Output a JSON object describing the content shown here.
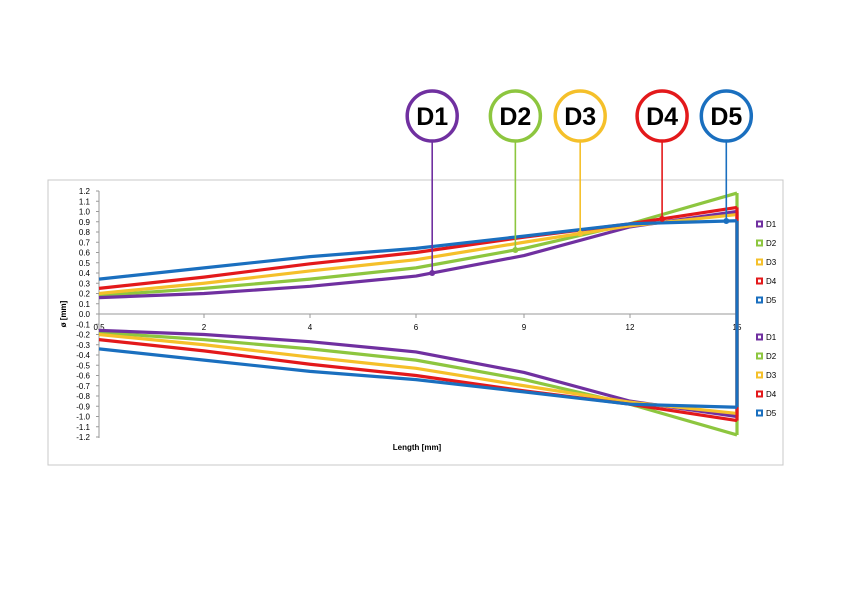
{
  "chart_data": {
    "type": "line",
    "title": "",
    "xlabel": "Length [mm]",
    "ylabel": "ø [mm]",
    "ylim": [
      -1.2,
      1.2
    ],
    "y_ticks": [
      1.2,
      1.1,
      1.0,
      0.9,
      0.8,
      0.7,
      0.6,
      0.5,
      0.4,
      0.3,
      0.2,
      0.1,
      0.0,
      -0.1,
      -0.2,
      -0.3,
      -0.4,
      -0.5,
      -0.6,
      -0.7,
      -0.8,
      -0.9,
      -1.0,
      -1.1,
      -1.2
    ],
    "y_tick_labels": [
      "1.2",
      "1.1",
      "1.0",
      "0.9",
      "0.8",
      "0.7",
      "0.6",
      "0.5",
      "0.4",
      "0.3",
      "0.2",
      "0.1",
      "0.0",
      "-0.1",
      "-0.2",
      "-0.3",
      "-0.4",
      "-0.5",
      "-0.6",
      "-0.7",
      "-0.8",
      "-0.9",
      "-1.0",
      "-1.1",
      "-1.2"
    ],
    "x_categories": [
      "0.5",
      "2",
      "4",
      "6",
      "9",
      "12",
      "15"
    ],
    "grid": false,
    "legend_position": "right",
    "colors": {
      "D1": "#7030a0",
      "D2": "#8dc63f",
      "D3": "#f5c02a",
      "D4": "#e3191b",
      "D5": "#1a6fbf"
    },
    "series": [
      {
        "name": "D1",
        "values": [
          0.16,
          0.2,
          0.27,
          0.37,
          0.57,
          0.85,
          1.0
        ]
      },
      {
        "name": "D2",
        "values": [
          0.18,
          0.25,
          0.34,
          0.45,
          0.64,
          0.88,
          1.18
        ]
      },
      {
        "name": "D3",
        "values": [
          0.2,
          0.3,
          0.42,
          0.53,
          0.7,
          0.86,
          0.97
        ]
      },
      {
        "name": "D4",
        "values": [
          0.25,
          0.36,
          0.49,
          0.6,
          0.75,
          0.88,
          1.04
        ]
      },
      {
        "name": "D5",
        "values": [
          0.34,
          0.45,
          0.56,
          0.64,
          0.76,
          0.88,
          0.91
        ]
      }
    ],
    "legend_upper": [
      "D1",
      "D2",
      "D3",
      "D4",
      "D5"
    ],
    "legend_lower": [
      "D1",
      "D2",
      "D3",
      "D4",
      "D5"
    ],
    "callouts": [
      {
        "label": "D1",
        "series": "D1",
        "x_index": 3.15
      },
      {
        "label": "D2",
        "series": "D2",
        "x_index": 3.92
      },
      {
        "label": "D3",
        "series": "D3",
        "x_index": 4.53
      },
      {
        "label": "D4",
        "series": "D4",
        "x_index": 5.3
      },
      {
        "label": "D5",
        "series": "D5",
        "x_index": 5.9
      }
    ]
  }
}
